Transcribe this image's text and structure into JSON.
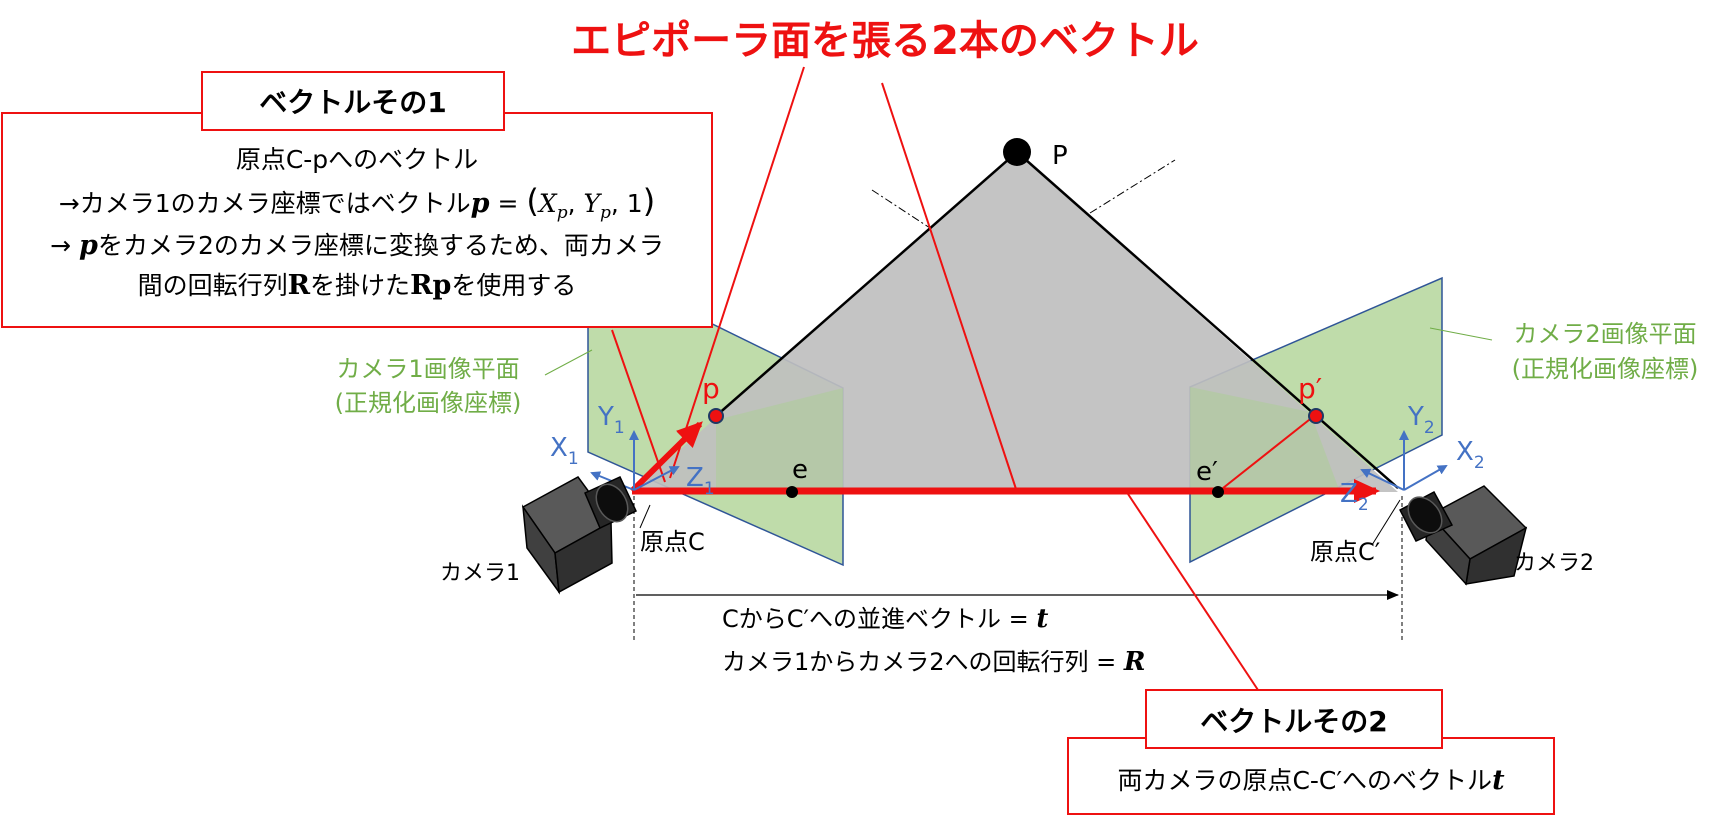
{
  "title": "エピポーラ面を張る2本のベクトル",
  "point_P": "P",
  "point_p": "p",
  "point_p_prime": "p′",
  "epipole_e": "e",
  "epipole_e_prime": "e′",
  "camera1": {
    "name": "カメラ1",
    "origin": "原点C",
    "plane_label_1": "カメラ1画像平面",
    "plane_label_2": "(正規化画像座標)",
    "axis_x": "X",
    "axis_x_sub": "1",
    "axis_y": "Y",
    "axis_y_sub": "1",
    "axis_z": "Z",
    "axis_z_sub": "1"
  },
  "camera2": {
    "name": "カメラ2",
    "origin": "原点C′",
    "plane_label_1": "カメラ2画像平面",
    "plane_label_2": "(正規化画像座標)",
    "axis_x": "X",
    "axis_x_sub": "2",
    "axis_y": "Y",
    "axis_y_sub": "2",
    "axis_z": "Z",
    "axis_z_sub": "2"
  },
  "vector1_box": {
    "header": "ベクトルその1",
    "line1": "原点C-pへのベクトル",
    "line2_prefix": "→カメラ1のカメラ座標ではベクトル",
    "line2_var": "p",
    "line2_eq": " = ",
    "line2_paren_open": "(",
    "line2_Xp": "X",
    "line2_Xp_sub": "p",
    "line2_comma1": ", ",
    "line2_Yp": "Y",
    "line2_Yp_sub": "p",
    "line2_comma2": ", 1",
    "line2_paren_close": ")",
    "line3_prefix": "→ ",
    "line3_var": "p",
    "line3_text": "をカメラ2のカメラ座標に変換するため、両カメラ",
    "line4_prefix": "間の回転行列",
    "line4_R": "R",
    "line4_mid": "を掛けた",
    "line4_Rp": "Rp",
    "line4_suffix": "を使用する"
  },
  "vector2_box": {
    "header": "ベクトルその2",
    "line1_prefix": "両カメラの原点C-C′へのベクトル",
    "line1_var": "t"
  },
  "translation_label_prefix": "CからC′への並進ベクトル = ",
  "translation_label_var": "t",
  "rotation_label_prefix": "カメラ1からカメラ2への回転行列 = ",
  "rotation_label_var": "R",
  "colors": {
    "red": "#ee1111",
    "plane_fill": "#a9d08e",
    "plane_stroke": "#2f5597",
    "epi_fill": "#bfbfbf",
    "axis_blue": "#4472c4",
    "green_text": "#70ad47"
  }
}
